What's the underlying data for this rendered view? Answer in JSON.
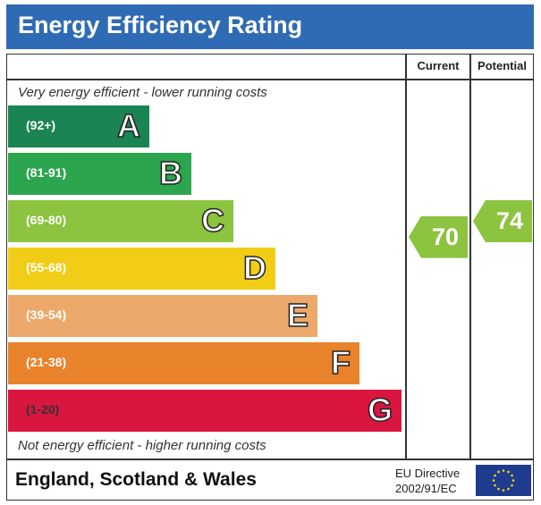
{
  "title": "Energy Efficiency Rating",
  "columns": {
    "current": "Current",
    "potential": "Potential"
  },
  "top_note": "Very energy efficient - lower running costs",
  "bottom_note": "Not energy efficient - higher running costs",
  "footer": {
    "region": "England, Scotland & Wales",
    "directive_line1": "EU Directive",
    "directive_line2": "2002/91/EC",
    "flag_icon": "eu-flag-icon"
  },
  "chart_data": {
    "type": "bar",
    "title": "Energy Efficiency Rating",
    "categories": [
      "A",
      "B",
      "C",
      "D",
      "E",
      "F",
      "G"
    ],
    "bands": [
      {
        "letter": "A",
        "range": "(92+)",
        "color": "#1a8553"
      },
      {
        "letter": "B",
        "range": "(81-91)",
        "color": "#2ca54f"
      },
      {
        "letter": "C",
        "range": "(69-80)",
        "color": "#8cc33f"
      },
      {
        "letter": "D",
        "range": "(55-68)",
        "color": "#f2cd17"
      },
      {
        "letter": "E",
        "range": "(39-54)",
        "color": "#eca96b"
      },
      {
        "letter": "F",
        "range": "(21-38)",
        "color": "#e8822b"
      },
      {
        "letter": "G",
        "range": "(1-20)",
        "color": "#d9163f"
      }
    ],
    "current": {
      "value": 70,
      "band": "C",
      "color": "#8cc33f"
    },
    "potential": {
      "value": 74,
      "band": "C",
      "color": "#8cc33f"
    }
  }
}
